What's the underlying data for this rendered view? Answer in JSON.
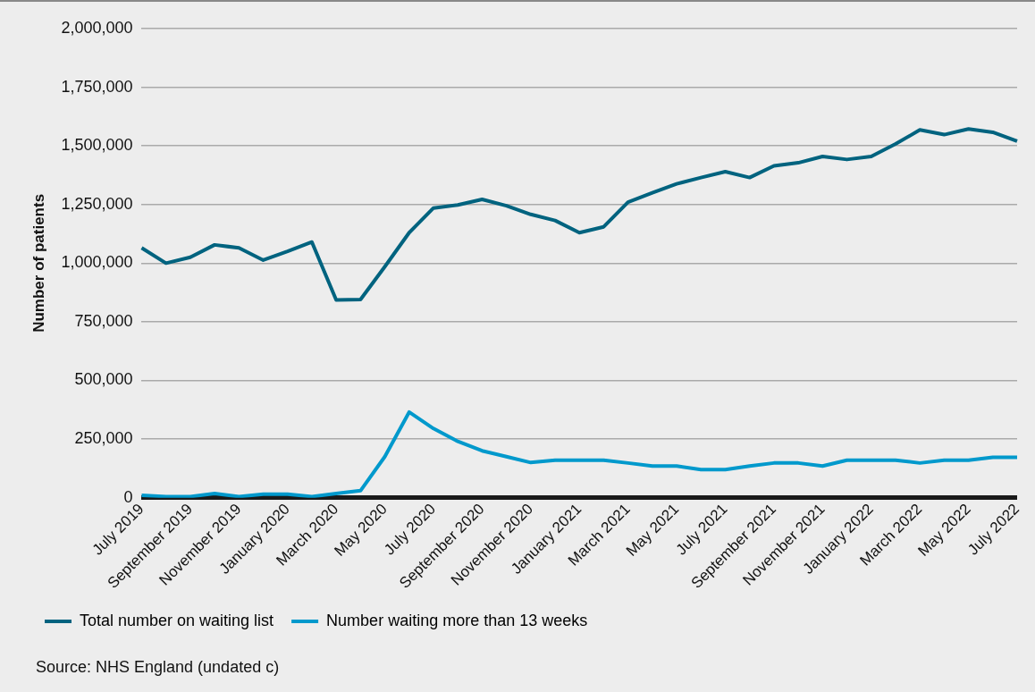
{
  "chart_data": {
    "type": "line",
    "categories": [
      "July 2019",
      null,
      "September 2019",
      null,
      "November 2019",
      null,
      "January 2020",
      null,
      "March 2020",
      null,
      "May 2020",
      null,
      "July 2020",
      null,
      "September 2020",
      null,
      "November 2020",
      null,
      "January 2021",
      null,
      "March 2021",
      null,
      "May 2021",
      null,
      "July 2021",
      null,
      "September 2021",
      null,
      "November 2021",
      null,
      "January 2022",
      null,
      "March 2022",
      null,
      "May 2022",
      null,
      "July 2022"
    ],
    "series": [
      {
        "name": "Total number on waiting list",
        "color": "#00637f",
        "values": [
          1065000,
          1000000,
          1025000,
          1078000,
          1065000,
          1013000,
          1050000,
          1090000,
          843000,
          845000,
          985000,
          1130000,
          1235000,
          1248000,
          1272000,
          1245000,
          1208000,
          1182000,
          1130000,
          1155000,
          1260000,
          1300000,
          1338000,
          1365000,
          1390000,
          1365000,
          1415000,
          1428000,
          1455000,
          1442000,
          1455000,
          1508000,
          1568000,
          1548000,
          1572000,
          1558000,
          1520000
        ]
      },
      {
        "name": "Number waiting more than 13 weeks",
        "color": "#0099cc",
        "values": [
          10000,
          5000,
          5000,
          18000,
          5000,
          15000,
          15000,
          5000,
          18000,
          30000,
          175000,
          365000,
          295000,
          240000,
          200000,
          175000,
          150000,
          160000,
          160000,
          160000,
          148000,
          135000,
          135000,
          120000,
          120000,
          135000,
          148000,
          148000,
          135000,
          160000,
          160000,
          160000,
          148000,
          160000,
          160000,
          172000,
          172000
        ]
      }
    ],
    "ylabel": "Number of patients",
    "ylim": [
      0,
      2000000
    ],
    "yticks": [
      0,
      {
        "value": 250000,
        "label": "250,000"
      },
      {
        "value": 500000,
        "label": "500,000"
      },
      {
        "value": 750000,
        "label": "750,000"
      },
      {
        "value": 1000000,
        "label": "1,000,000"
      },
      {
        "value": 1250000,
        "label": "1,250,000"
      },
      {
        "value": 1500000,
        "label": "1,500,000"
      },
      {
        "value": 1750000,
        "label": "1,750,000"
      },
      {
        "value": 2000000,
        "label": "2,000,000"
      }
    ],
    "grid": "y",
    "legend": "bottom",
    "marker": "none",
    "line_style": "solid",
    "annotations": [
      "Source: NHS England (undated c)"
    ]
  }
}
